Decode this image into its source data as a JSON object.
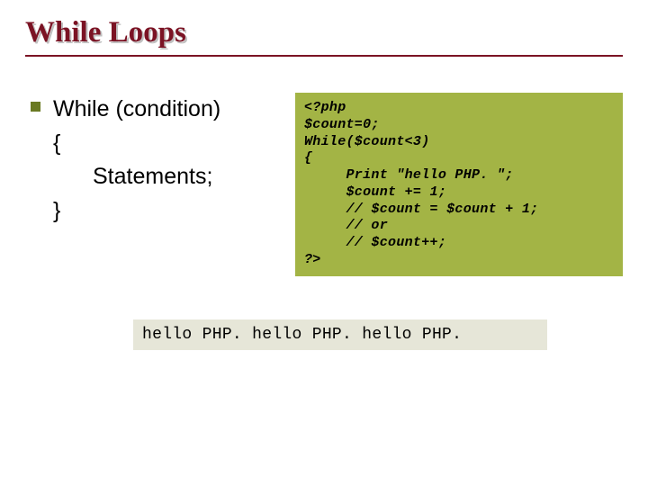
{
  "slide": {
    "title": "While Loops",
    "title_fontsize": 33,
    "title_color": "#7b1324",
    "title_shadow_color": "#c0c0c0",
    "underline_color": "#7b1324",
    "background_color": "#ffffff"
  },
  "bullet": {
    "color": "#6a7a23",
    "size": 11
  },
  "syntax": {
    "line1": "While (condition)",
    "line2": "{",
    "line3": "Statements;",
    "line4": "}",
    "fontsize": 25,
    "font_family": "Arial",
    "color": "#000000"
  },
  "code": {
    "lines": "<?php\n$count=0;\nWhile($count<3)\n{\n     Print \"hello PHP. \";\n     $count += 1;\n     // $count = $count + 1;\n     // or\n     // $count++;\n?>",
    "fontsize": 15,
    "font_family": "Courier New",
    "font_style": "bold italic",
    "background_color": "#a3b445",
    "text_color": "#000000"
  },
  "output": {
    "text": "hello PHP. hello PHP. hello PHP.",
    "fontsize": 18,
    "font_family": "Courier New",
    "background_color": "#e6e6d8",
    "text_color": "#000000"
  }
}
